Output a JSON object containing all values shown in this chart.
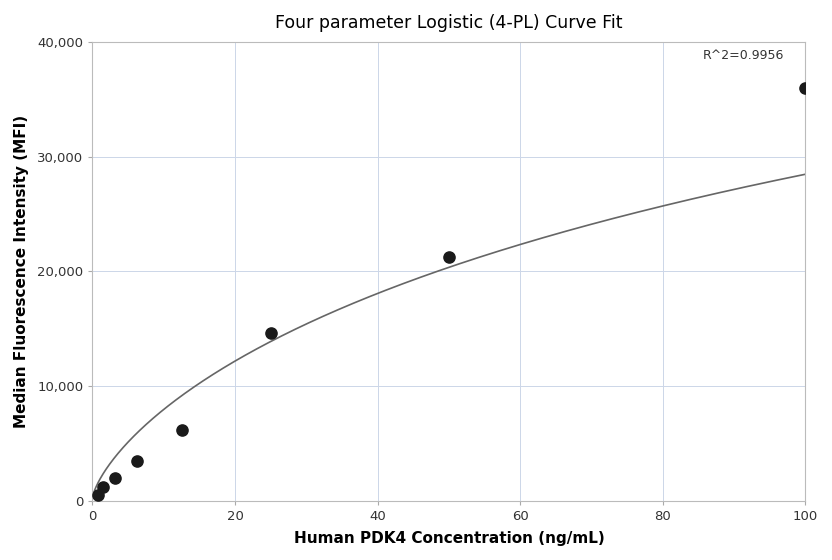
{
  "title": "Four parameter Logistic (4-PL) Curve Fit",
  "xlabel": "Human PDK4 Concentration (ng/mL)",
  "ylabel": "Median Fluorescence Intensity (MFI)",
  "scatter_x": [
    0.78,
    1.56,
    3.125,
    6.25,
    12.5,
    25,
    50,
    100
  ],
  "scatter_y": [
    500,
    1200,
    2000,
    3500,
    6200,
    14600,
    21200,
    36000
  ],
  "xlim": [
    0,
    100
  ],
  "ylim": [
    0,
    40000
  ],
  "xticks": [
    0,
    20,
    40,
    60,
    80,
    100
  ],
  "yticks": [
    0,
    10000,
    20000,
    30000,
    40000
  ],
  "ytick_labels": [
    "0",
    "10,000",
    "20,000",
    "30,000",
    "40,000"
  ],
  "r_squared_text": "R^2=0.9956",
  "r_squared_x": 97,
  "r_squared_y": 38200,
  "scatter_color": "#1a1a1a",
  "scatter_size": 65,
  "line_color": "#666666",
  "grid_color": "#ccd6e8",
  "background_color": "#ffffff",
  "4pl_A": 200,
  "4pl_B": 0.72,
  "4pl_C": 200,
  "4pl_D": 75000
}
